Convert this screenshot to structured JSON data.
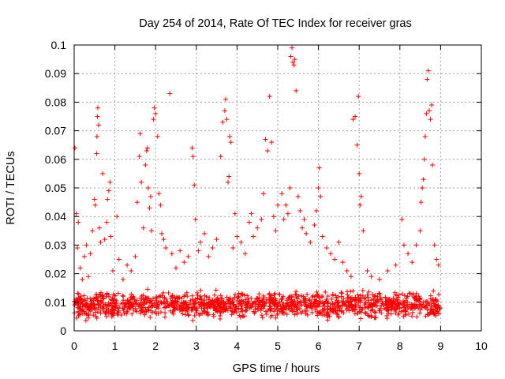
{
  "chart_data": {
    "type": "scatter",
    "title": "Day 254 of 2014, Rate Of TEC Index for receiver gras",
    "xlabel": "GPS time / hours",
    "ylabel": "ROTI / TECUs",
    "xlim": [
      0,
      10
    ],
    "ylim": [
      0,
      0.1
    ],
    "grid": true,
    "marker": "+",
    "marker_color": "#ff0000",
    "x_ticks": [
      0,
      1,
      2,
      3,
      4,
      5,
      6,
      7,
      8,
      9,
      10
    ],
    "x_tick_labels": [
      "0",
      "1",
      "2",
      "3",
      "4",
      "5",
      "6",
      "7",
      "8",
      "9",
      "10"
    ],
    "y_ticks": [
      0,
      0.01,
      0.02,
      0.03,
      0.04,
      0.05,
      0.06,
      0.07,
      0.08,
      0.09,
      0.1
    ],
    "y_tick_labels": [
      "0",
      "0.01",
      "0.02",
      "0.03",
      "0.04",
      "0.05",
      "0.06",
      "0.07",
      "0.08",
      "0.09",
      "0.1"
    ],
    "background_band": {
      "x_range": [
        0,
        9
      ],
      "y_range": [
        0.003,
        0.015
      ],
      "count": 1400,
      "description": "dense cloud of observations"
    },
    "points": [
      [
        0.02,
        0.064
      ],
      [
        0.05,
        0.041
      ],
      [
        0.08,
        0.029
      ],
      [
        0.1,
        0.038
      ],
      [
        0.15,
        0.022
      ],
      [
        0.2,
        0.018
      ],
      [
        0.25,
        0.026
      ],
      [
        0.3,
        0.03
      ],
      [
        0.35,
        0.019
      ],
      [
        0.4,
        0.027
      ],
      [
        0.45,
        0.035
      ],
      [
        0.5,
        0.046
      ],
      [
        0.52,
        0.044
      ],
      [
        0.55,
        0.062
      ],
      [
        0.56,
        0.068
      ],
      [
        0.57,
        0.075
      ],
      [
        0.58,
        0.078
      ],
      [
        0.6,
        0.072
      ],
      [
        0.62,
        0.036
      ],
      [
        0.65,
        0.031
      ],
      [
        0.7,
        0.055
      ],
      [
        0.75,
        0.032
      ],
      [
        0.8,
        0.038
      ],
      [
        0.82,
        0.046
      ],
      [
        0.85,
        0.049
      ],
      [
        0.88,
        0.052
      ],
      [
        0.9,
        0.033
      ],
      [
        0.95,
        0.021
      ],
      [
        1.05,
        0.04
      ],
      [
        1.1,
        0.025
      ],
      [
        1.2,
        0.018
      ],
      [
        1.3,
        0.023
      ],
      [
        1.4,
        0.021
      ],
      [
        1.5,
        0.026
      ],
      [
        1.55,
        0.045
      ],
      [
        1.6,
        0.061
      ],
      [
        1.62,
        0.069
      ],
      [
        1.65,
        0.052
      ],
      [
        1.7,
        0.036
      ],
      [
        1.75,
        0.058
      ],
      [
        1.78,
        0.063
      ],
      [
        1.8,
        0.064
      ],
      [
        1.82,
        0.05
      ],
      [
        1.85,
        0.043
      ],
      [
        1.88,
        0.047
      ],
      [
        1.9,
        0.035
      ],
      [
        1.95,
        0.074
      ],
      [
        1.97,
        0.078
      ],
      [
        2.0,
        0.076
      ],
      [
        2.05,
        0.068
      ],
      [
        2.08,
        0.048
      ],
      [
        2.12,
        0.044
      ],
      [
        2.15,
        0.034
      ],
      [
        2.2,
        0.032
      ],
      [
        2.25,
        0.029
      ],
      [
        2.35,
        0.083
      ],
      [
        2.4,
        0.027
      ],
      [
        2.5,
        0.022
      ],
      [
        2.6,
        0.028
      ],
      [
        2.7,
        0.024
      ],
      [
        2.8,
        0.026
      ],
      [
        2.9,
        0.064
      ],
      [
        2.92,
        0.061
      ],
      [
        2.95,
        0.051
      ],
      [
        2.98,
        0.039
      ],
      [
        3.05,
        0.028
      ],
      [
        3.1,
        0.031
      ],
      [
        3.2,
        0.034
      ],
      [
        3.3,
        0.026
      ],
      [
        3.4,
        0.029
      ],
      [
        3.5,
        0.032
      ],
      [
        3.6,
        0.061
      ],
      [
        3.65,
        0.073
      ],
      [
        3.7,
        0.077
      ],
      [
        3.72,
        0.081
      ],
      [
        3.75,
        0.074
      ],
      [
        3.78,
        0.052
      ],
      [
        3.8,
        0.054
      ],
      [
        3.82,
        0.068
      ],
      [
        3.85,
        0.066
      ],
      [
        3.9,
        0.029
      ],
      [
        3.95,
        0.041
      ],
      [
        4.0,
        0.033
      ],
      [
        4.1,
        0.031
      ],
      [
        4.2,
        0.027
      ],
      [
        4.3,
        0.038
      ],
      [
        4.35,
        0.041
      ],
      [
        4.4,
        0.033
      ],
      [
        4.5,
        0.036
      ],
      [
        4.6,
        0.039
      ],
      [
        4.65,
        0.048
      ],
      [
        4.7,
        0.067
      ],
      [
        4.75,
        0.063
      ],
      [
        4.8,
        0.082
      ],
      [
        4.85,
        0.066
      ],
      [
        4.9,
        0.04
      ],
      [
        4.95,
        0.035
      ],
      [
        5.0,
        0.044
      ],
      [
        5.1,
        0.048
      ],
      [
        5.15,
        0.039
      ],
      [
        5.2,
        0.044
      ],
      [
        5.25,
        0.041
      ],
      [
        5.3,
        0.05
      ],
      [
        5.32,
        0.096
      ],
      [
        5.35,
        0.099
      ],
      [
        5.37,
        0.094
      ],
      [
        5.4,
        0.093
      ],
      [
        5.42,
        0.095
      ],
      [
        5.45,
        0.084
      ],
      [
        5.5,
        0.047
      ],
      [
        5.55,
        0.042
      ],
      [
        5.6,
        0.036
      ],
      [
        5.65,
        0.039
      ],
      [
        5.7,
        0.034
      ],
      [
        5.8,
        0.031
      ],
      [
        5.9,
        0.037
      ],
      [
        5.95,
        0.042
      ],
      [
        6.0,
        0.05
      ],
      [
        6.02,
        0.057
      ],
      [
        6.05,
        0.047
      ],
      [
        6.1,
        0.033
      ],
      [
        6.2,
        0.029
      ],
      [
        6.3,
        0.027
      ],
      [
        6.4,
        0.025
      ],
      [
        6.5,
        0.031
      ],
      [
        6.6,
        0.024
      ],
      [
        6.7,
        0.021
      ],
      [
        6.8,
        0.019
      ],
      [
        6.85,
        0.074
      ],
      [
        6.9,
        0.075
      ],
      [
        6.95,
        0.065
      ],
      [
        6.98,
        0.082
      ],
      [
        7.0,
        0.055
      ],
      [
        7.02,
        0.044
      ],
      [
        7.05,
        0.047
      ],
      [
        7.1,
        0.035
      ],
      [
        7.2,
        0.021
      ],
      [
        7.3,
        0.019
      ],
      [
        7.5,
        0.018
      ],
      [
        7.7,
        0.021
      ],
      [
        7.9,
        0.023
      ],
      [
        8.05,
        0.039
      ],
      [
        8.1,
        0.03
      ],
      [
        8.2,
        0.027
      ],
      [
        8.3,
        0.024
      ],
      [
        8.4,
        0.03
      ],
      [
        8.5,
        0.035
      ],
      [
        8.52,
        0.045
      ],
      [
        8.55,
        0.05
      ],
      [
        8.58,
        0.053
      ],
      [
        8.6,
        0.06
      ],
      [
        8.62,
        0.068
      ],
      [
        8.65,
        0.076
      ],
      [
        8.67,
        0.088
      ],
      [
        8.7,
        0.091
      ],
      [
        8.72,
        0.077
      ],
      [
        8.75,
        0.074
      ],
      [
        8.78,
        0.079
      ],
      [
        8.8,
        0.058
      ],
      [
        8.85,
        0.03
      ],
      [
        8.9,
        0.025
      ],
      [
        8.95,
        0.023
      ]
    ]
  }
}
